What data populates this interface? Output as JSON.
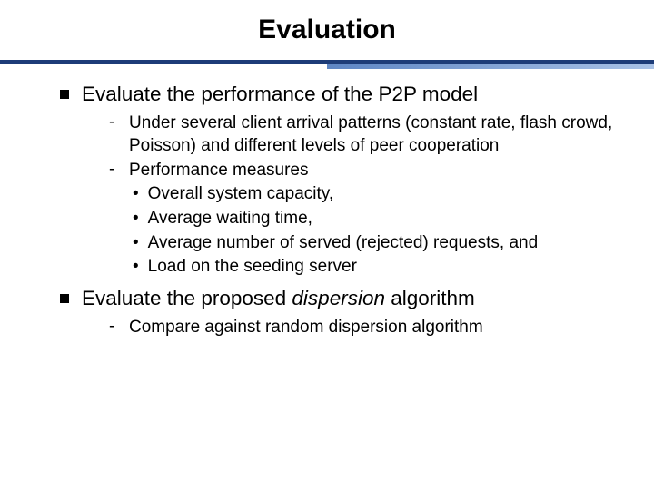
{
  "colors": {
    "background": "#ffffff",
    "title_text": "#000000",
    "body_text": "#000000",
    "rule_dark": "#1d3c78",
    "rule_light_from": "#5e86c4",
    "rule_light_to": "#a9c2e6"
  },
  "typography": {
    "title_fontsize": 30,
    "title_weight": "bold",
    "lvl1_fontsize": 22.5,
    "lvl2_fontsize": 19,
    "lvl3_fontsize": 19,
    "font_family": "Arial"
  },
  "title": "Evaluation",
  "bullets": [
    {
      "text": "Evaluate the performance of the P2P model",
      "children": [
        {
          "text": "Under several client arrival patterns (constant rate, flash crowd, Poisson) and different levels of peer cooperation"
        },
        {
          "text": "Performance measures",
          "children": [
            {
              "text": "Overall system capacity,"
            },
            {
              "text": "Average waiting time,"
            },
            {
              "text": "Average number of served (rejected) requests, and"
            },
            {
              "text": " Load on the seeding server"
            }
          ]
        }
      ]
    },
    {
      "text_pre": "Evaluate the proposed ",
      "text_italic": "dispersion",
      "text_post": " algorithm",
      "children": [
        {
          "text": "Compare against random dispersion algorithm"
        }
      ]
    }
  ]
}
